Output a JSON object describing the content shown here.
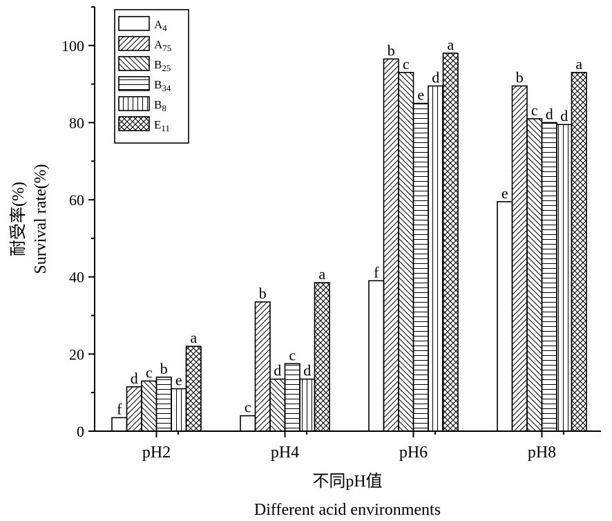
{
  "chart_data": {
    "type": "bar",
    "categories": [
      "pH2",
      "pH4",
      "pH6",
      "pH8"
    ],
    "ylim": [
      0,
      110
    ],
    "yticks": [
      0,
      20,
      40,
      60,
      80,
      100
    ],
    "ylabel_cn": "耐受率(%)",
    "ylabel_en": "Survival rate(%)",
    "xlabel_cn": "不同pH值",
    "xlabel_en": "Different acid environments",
    "legend_position": "top-left",
    "grid": false,
    "series": [
      {
        "name": "A",
        "sub": "4",
        "pattern": "none",
        "values": [
          3.5,
          4.0,
          39.0,
          59.5
        ],
        "labels": [
          "f",
          "c",
          "f",
          "e"
        ]
      },
      {
        "name": "A",
        "sub": "75",
        "pattern": "diag-right",
        "values": [
          11.5,
          33.5,
          96.5,
          89.5
        ],
        "labels": [
          "d",
          "b",
          "b",
          "b"
        ]
      },
      {
        "name": "B",
        "sub": "25",
        "pattern": "diag-left",
        "values": [
          13.0,
          13.5,
          93.0,
          81.0
        ],
        "labels": [
          "c",
          "d",
          "c",
          "c"
        ]
      },
      {
        "name": "B",
        "sub": "34",
        "pattern": "horizontal",
        "values": [
          14.0,
          17.5,
          85.0,
          80.0
        ],
        "labels": [
          "b",
          "c",
          "e",
          "d"
        ]
      },
      {
        "name": "B",
        "sub": "8",
        "pattern": "vertical",
        "values": [
          11.0,
          13.5,
          89.5,
          79.5
        ],
        "labels": [
          "e",
          "d",
          "d",
          "d"
        ]
      },
      {
        "name": "E",
        "sub": "11",
        "pattern": "cross",
        "values": [
          22.0,
          38.5,
          98.0,
          93.0
        ],
        "labels": [
          "a",
          "a",
          "a",
          "a"
        ]
      }
    ]
  }
}
